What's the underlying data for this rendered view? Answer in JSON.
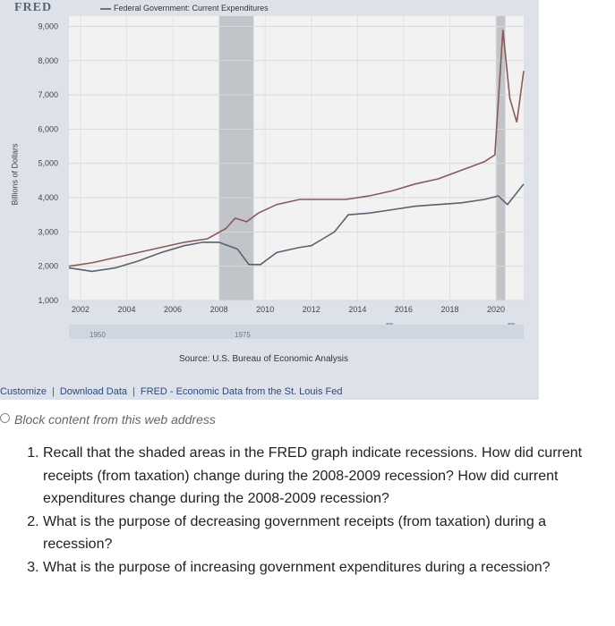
{
  "brand": "FRED",
  "legend_label": "Federal Government: Current Expenditures",
  "yaxis_title": "Billions of Dollars",
  "source": "Source: U.S. Bureau of Economic Analysis",
  "links": {
    "customize": "Customize",
    "download": "Download Data",
    "fred": "FRED - Economic Data from the St. Louis Fed"
  },
  "blocked_text": "Block content from this web address",
  "slider": {
    "label_1950": "1950",
    "label_1975": "1975"
  },
  "questions": [
    "Recall that the shaded areas in the FRED graph indicate recessions. How did current receipts (from taxation) change during the 2008-2009 recession? How did current expenditures change during the 2008-2009 recession?",
    "What is the purpose of decreasing government receipts (from taxation) during a recession?",
    "What is the purpose of increasing government expenditures during a recession?"
  ],
  "colors": {
    "expenditures": "#8a5a5a",
    "receipts": "#5a6270",
    "recession": "#b4b8be",
    "plot_bg": "#f2f2f2"
  },
  "chart_data": {
    "type": "line",
    "xlim": [
      2001.5,
      2021.2
    ],
    "ylim": [
      1000,
      9300
    ],
    "xticks": [
      "2002",
      "2004",
      "2006",
      "2008",
      "2010",
      "2012",
      "2014",
      "2016",
      "2018",
      "2020"
    ],
    "yticks": [
      "1,000",
      "2,000",
      "3,000",
      "4,000",
      "5,000",
      "6,000",
      "7,000",
      "8,000",
      "9,000"
    ],
    "recessions": [
      [
        2008.0,
        2009.5
      ],
      [
        2020.0,
        2020.4
      ]
    ],
    "series": [
      {
        "key": "expenditures",
        "x": [
          2001.5,
          2002.5,
          2003.5,
          2004.5,
          2005.5,
          2006.5,
          2007.5,
          2008.3,
          2008.7,
          2009.2,
          2009.7,
          2010.5,
          2011.5,
          2012.5,
          2013.5,
          2014.5,
          2015.5,
          2016.5,
          2017.5,
          2018.5,
          2019.5,
          2019.95,
          2020.3,
          2020.6,
          2020.9,
          2021.2
        ],
        "y": [
          2000,
          2100,
          2250,
          2400,
          2550,
          2700,
          2800,
          3100,
          3400,
          3300,
          3550,
          3800,
          3950,
          3950,
          3950,
          4050,
          4200,
          4400,
          4550,
          4800,
          5050,
          5250,
          8900,
          6900,
          6200,
          7700
        ]
      },
      {
        "key": "receipts",
        "x": [
          2001.5,
          2002.5,
          2003.5,
          2004.5,
          2005.5,
          2006.5,
          2007.3,
          2008.0,
          2008.8,
          2009.3,
          2009.8,
          2010.5,
          2011.5,
          2012.0,
          2012.5,
          2013.0,
          2013.6,
          2014.5,
          2015.5,
          2016.5,
          2017.5,
          2018.5,
          2019.5,
          2020.1,
          2020.5,
          2021.2
        ],
        "y": [
          1950,
          1850,
          1950,
          2150,
          2400,
          2600,
          2700,
          2700,
          2500,
          2050,
          2050,
          2400,
          2550,
          2600,
          2800,
          3000,
          3500,
          3550,
          3650,
          3750,
          3800,
          3850,
          3950,
          4050,
          3800,
          4400
        ]
      }
    ]
  }
}
